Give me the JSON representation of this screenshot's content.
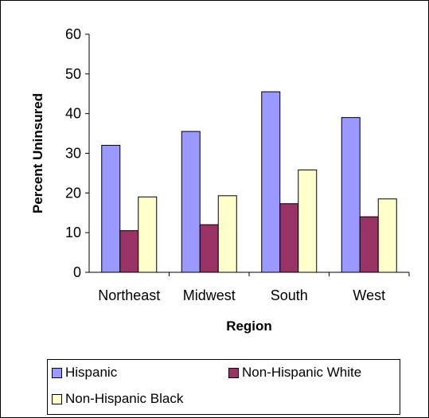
{
  "chart_data": {
    "type": "bar",
    "categories": [
      "Northeast",
      "Midwest",
      "South",
      "West"
    ],
    "series": [
      {
        "name": "Hispanic",
        "values": [
          32,
          35.5,
          45.5,
          39
        ],
        "color": "#9999FF"
      },
      {
        "name": "Non-Hispanic White",
        "values": [
          10.5,
          12,
          17.3,
          14
        ],
        "color": "#993366"
      },
      {
        "name": "Non-Hispanic Black",
        "values": [
          19,
          19.3,
          25.8,
          18.5
        ],
        "color": "#FFFFCC"
      }
    ],
    "title": "",
    "xlabel": "Region",
    "ylabel": "Percent Uninsured",
    "ylim": [
      0,
      60
    ],
    "yticks": [
      "0",
      "10",
      "20",
      "30",
      "40",
      "50",
      "60"
    ],
    "grid": false,
    "legend_position": "bottom"
  }
}
